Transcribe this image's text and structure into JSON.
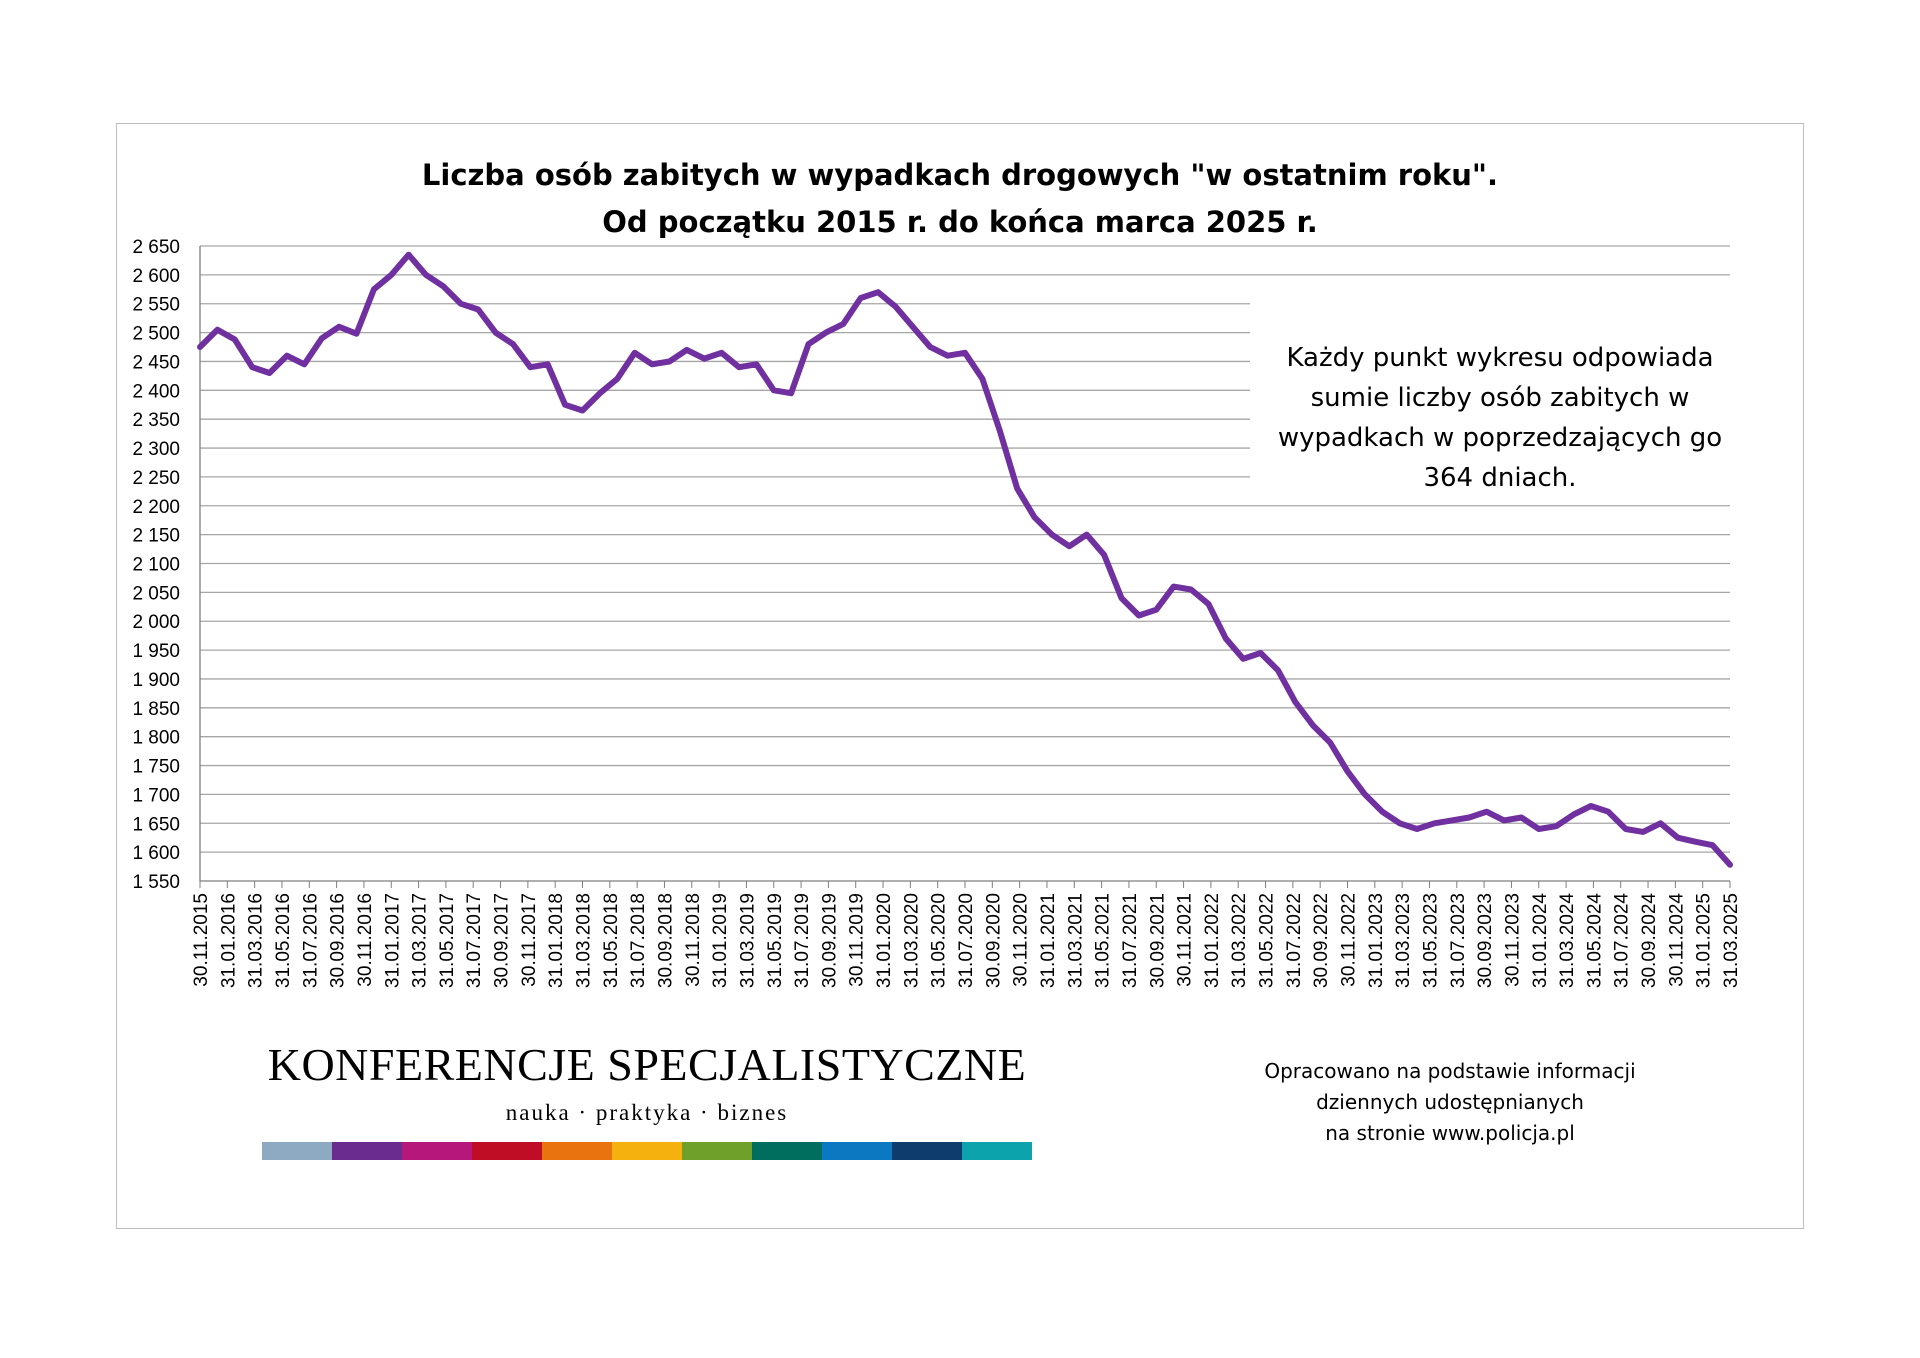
{
  "chart_data": {
    "type": "line",
    "title": "Liczba osób zabitych w wypadkach drogowych \"w ostatnim roku\".",
    "subtitle": "Od początku 2015 r. do końca marca 2025 r.",
    "xlabel": "",
    "ylabel": "",
    "ylim": [
      1550,
      2650
    ],
    "y_ticks": [
      1550,
      1600,
      1650,
      1700,
      1750,
      1800,
      1850,
      1900,
      1950,
      2000,
      2050,
      2100,
      2150,
      2200,
      2250,
      2300,
      2350,
      2400,
      2450,
      2500,
      2550,
      2600,
      2650
    ],
    "y_tick_labels": [
      "1 550",
      "1 600",
      "1 650",
      "1 700",
      "1 750",
      "1 800",
      "1 850",
      "1 900",
      "1 950",
      "2 000",
      "2 050",
      "2 100",
      "2 150",
      "2 200",
      "2 250",
      "2 300",
      "2 350",
      "2 400",
      "2 450",
      "2 500",
      "2 550",
      "2 600",
      "2 650"
    ],
    "x_tick_labels": [
      "30.11.2015",
      "31.01.2016",
      "31.03.2016",
      "31.05.2016",
      "31.07.2016",
      "30.09.2016",
      "30.11.2016",
      "31.01.2017",
      "31.03.2017",
      "31.05.2017",
      "31.07.2017",
      "30.09.2017",
      "30.11.2017",
      "31.01.2018",
      "31.03.2018",
      "31.05.2018",
      "31.07.2018",
      "30.09.2018",
      "30.11.2018",
      "31.01.2019",
      "31.03.2019",
      "31.05.2019",
      "31.07.2019",
      "30.09.2019",
      "30.11.2019",
      "31.01.2020",
      "31.03.2020",
      "31.05.2020",
      "31.07.2020",
      "30.09.2020",
      "30.11.2020",
      "31.01.2021",
      "31.03.2021",
      "31.05.2021",
      "31.07.2021",
      "30.09.2021",
      "30.11.2021",
      "31.01.2022",
      "31.03.2022",
      "31.05.2022",
      "31.07.2022",
      "30.09.2022",
      "30.11.2022",
      "31.01.2023",
      "31.03.2023",
      "31.05.2023",
      "31.07.2023",
      "30.09.2023",
      "30.11.2023",
      "31.01.2024",
      "31.03.2024",
      "31.05.2024",
      "31.07.2024",
      "30.09.2024",
      "30.11.2024",
      "31.01.2025",
      "31.03.2025"
    ],
    "series": [
      {
        "color": "#7030a0",
        "values": [
          2475,
          2505,
          2488,
          2440,
          2430,
          2460,
          2445,
          2490,
          2510,
          2498,
          2575,
          2600,
          2635,
          2600,
          2580,
          2550,
          2540,
          2500,
          2480,
          2440,
          2445,
          2375,
          2365,
          2395,
          2420,
          2465,
          2445,
          2450,
          2470,
          2455,
          2465,
          2440,
          2445,
          2400,
          2395,
          2480,
          2500,
          2515,
          2560,
          2570,
          2545,
          2510,
          2475,
          2460,
          2465,
          2420,
          2330,
          2230,
          2180,
          2150,
          2130,
          2150,
          2115,
          2040,
          2010,
          2020,
          2060,
          2055,
          2030,
          1970,
          1935,
          1945,
          1915,
          1860,
          1820,
          1790,
          1740,
          1700,
          1670,
          1650,
          1640,
          1650,
          1655,
          1660,
          1670,
          1655,
          1660,
          1640,
          1645,
          1665,
          1680,
          1670,
          1640,
          1635,
          1650,
          1625,
          1618,
          1612,
          1578
        ]
      }
    ],
    "grid": "horizontal",
    "legend": "none"
  },
  "note": {
    "lines": [
      "Każdy punkt wykresu odpowiada",
      "sumie liczby osób zabitych w",
      "wypadkach w poprzedzających go",
      "364 dniach."
    ]
  },
  "logo": {
    "main": "KONFERENCJE SPECJALISTYCZNE",
    "sub": "nauka · praktyka · biznes",
    "bar_colors": [
      "#8eaac3",
      "#6a2c8e",
      "#b5177a",
      "#c00d26",
      "#e8730f",
      "#f5b20f",
      "#6fa12a",
      "#006e5e",
      "#0b78c1",
      "#0e3c6d",
      "#0ca3ad"
    ]
  },
  "source": {
    "lines": [
      "Opracowano na podstawie informacji",
      "dziennych udostępnianych",
      "na stronie www.policja.pl"
    ]
  },
  "colors": {
    "line": "#7030a0",
    "grid": "#a6a6a6",
    "axis": "#7f7f7f"
  }
}
